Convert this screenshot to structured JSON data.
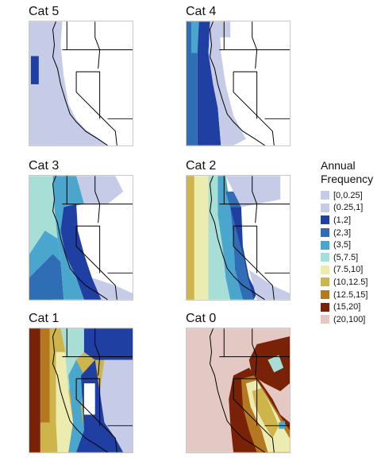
{
  "panels": [
    {
      "title": "Cat 5"
    },
    {
      "title": "Cat 4"
    },
    {
      "title": "Cat 3"
    },
    {
      "title": "Cat 2"
    },
    {
      "title": "Cat 1"
    },
    {
      "title": "Cat 0"
    }
  ],
  "legend": {
    "title_line1": "Annual",
    "title_line2": "Frequency",
    "items": [
      {
        "label": "[0,0.25]",
        "color": "#c6cbe8"
      },
      {
        "label": "(0.25,1]",
        "color": "#c6cbe8"
      },
      {
        "label": "(1,2]",
        "color": "#1f3fa3"
      },
      {
        "label": "(2,3]",
        "color": "#2f6db5"
      },
      {
        "label": "(3,5]",
        "color": "#4aa6cc"
      },
      {
        "label": "(5,7.5]",
        "color": "#a7dfd6"
      },
      {
        "label": "(7.5,10]",
        "color": "#ecebb0"
      },
      {
        "label": "(10,12.5]",
        "color": "#cdb54b"
      },
      {
        "label": "(12.5,15]",
        "color": "#b47820"
      },
      {
        "label": "(15,20]",
        "color": "#7a2208"
      },
      {
        "label": "(20,100]",
        "color": "#e3c8c3"
      }
    ]
  }
}
